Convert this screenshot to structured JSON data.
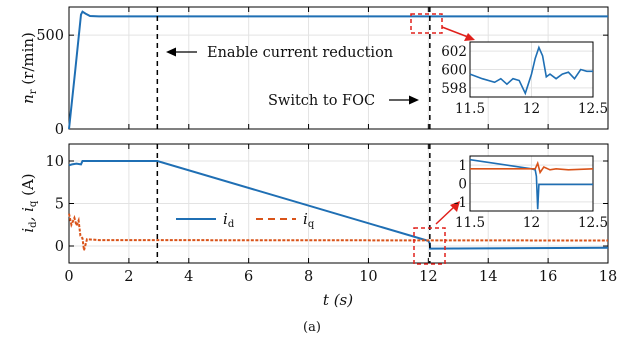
{
  "colors": {
    "id": "#1f6fb4",
    "iq": "#d95319",
    "highlight": "#e0201b",
    "axis": "#000000"
  },
  "caption": "(a)",
  "chart_data": [
    {
      "name": "speed",
      "type": "line",
      "ylabel_main": "n",
      "ylabel_sub": "r",
      "ylabel_unit": "(r/min)",
      "xlim": [
        0,
        18
      ],
      "ylim": [
        0,
        650
      ],
      "yticks": [
        "0",
        "500"
      ],
      "grid": true,
      "annotations": {
        "enable": "Enable current reduction",
        "switch": "Switch to FOC"
      },
      "event_lines_x": [
        2.95,
        12.05
      ],
      "series": [
        {
          "color": "#1f6fb4",
          "x": [
            0,
            0.2,
            0.4,
            0.45,
            0.55,
            0.7,
            1.0,
            2.95,
            12.0,
            12.1,
            18
          ],
          "y": [
            0,
            300,
            610,
            625,
            615,
            602,
            600,
            600,
            600,
            600,
            600
          ]
        }
      ],
      "inset": {
        "xlim": [
          11.5,
          12.5
        ],
        "ylim": [
          597,
          603
        ],
        "xticks": [
          "11.5",
          "12",
          "12.5"
        ],
        "yticks": [
          "598",
          "600",
          "602"
        ],
        "series": [
          {
            "color": "#1f6fb4",
            "x": [
              11.5,
              11.6,
              11.7,
              11.75,
              11.8,
              11.85,
              11.9,
              11.95,
              12.0,
              12.03,
              12.06,
              12.09,
              12.12,
              12.15,
              12.2,
              12.25,
              12.3,
              12.35,
              12.4,
              12.45,
              12.5
            ],
            "y": [
              599.5,
              599.0,
              598.6,
              599.0,
              598.4,
              599.0,
              598.8,
              597.4,
              599.5,
              601.2,
              602.4,
              601.5,
              599.2,
              599.5,
              599.0,
              599.5,
              599.7,
              599.0,
              600.0,
              599.8,
              599.8
            ]
          }
        ]
      }
    },
    {
      "name": "currents",
      "type": "line",
      "ylabel_main": "i",
      "ylabel_sub1": "d",
      "ylabel_sep": ", i",
      "ylabel_sub2": "q",
      "ylabel_unit": "(A)",
      "xlabel_main": "t",
      "xlabel_unit": "(s)",
      "xlim": [
        0,
        18
      ],
      "ylim": [
        -2,
        12
      ],
      "xticks": [
        "0",
        "2",
        "4",
        "6",
        "8",
        "10",
        "12",
        "14",
        "16",
        "18"
      ],
      "yticks": [
        "0",
        "5",
        "10"
      ],
      "grid": true,
      "legend": [
        {
          "main": "i",
          "sub": "d",
          "color": "#1f6fb4",
          "dash": false
        },
        {
          "main": "i",
          "sub": "q",
          "color": "#d95319",
          "dash": true
        }
      ],
      "series": [
        {
          "name": "id",
          "color": "#1f6fb4",
          "x": [
            0,
            0.1,
            0.25,
            0.4,
            0.45,
            2.95,
            12.0,
            12.05,
            12.06,
            18
          ],
          "y": [
            9.5,
            9.6,
            9.7,
            9.6,
            10.0,
            10.0,
            0.6,
            0.3,
            -0.3,
            -0.2
          ]
        },
        {
          "name": "iq",
          "color": "#d95319",
          "x": [
            0,
            0.08,
            0.18,
            0.25,
            0.32,
            0.38,
            0.45,
            0.5,
            0.6,
            1.0,
            18
          ],
          "y": [
            3.8,
            2.5,
            3.3,
            2.4,
            3.0,
            1.2,
            0.9,
            -0.5,
            0.8,
            0.7,
            0.65
          ]
        }
      ],
      "inset": {
        "xlim": [
          11.5,
          12.5
        ],
        "ylim": [
          -1.5,
          1.5
        ],
        "xticks": [
          "11.5",
          "12",
          "12.5"
        ],
        "yticks": [
          "-1",
          "0",
          "1"
        ],
        "series": [
          {
            "name": "id",
            "color": "#1f6fb4",
            "x": [
              11.5,
              12.0,
              12.03,
              12.04,
              12.05,
              12.06,
              12.07,
              12.5
            ],
            "y": [
              1.3,
              0.8,
              0.75,
              0.4,
              -1.4,
              -0.05,
              -0.05,
              -0.05
            ]
          },
          {
            "name": "iq",
            "color": "#d95319",
            "x": [
              11.5,
              12.0,
              12.03,
              12.05,
              12.07,
              12.1,
              12.15,
              12.2,
              12.3,
              12.5
            ],
            "y": [
              0.8,
              0.8,
              0.8,
              1.1,
              0.6,
              0.9,
              0.75,
              0.8,
              0.75,
              0.8
            ]
          }
        ]
      }
    }
  ]
}
